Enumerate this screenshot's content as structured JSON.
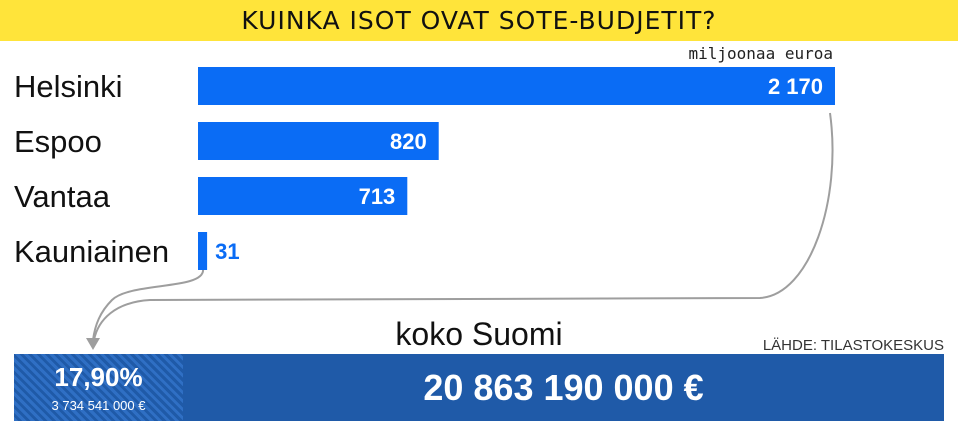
{
  "title": "KUINKA ISOT OVAT SOTE-BUDJETIT?",
  "unit": "miljoonaa euroa",
  "source": "LÄHDE: TILASTOKESKUS",
  "colors": {
    "title_background": "#ffe43a",
    "bar": "#0a6cf5",
    "total_background": "#1f5aa8",
    "connector": "#9e9e9e"
  },
  "total": {
    "caption": "koko Suomi",
    "amount": "20 863 190 000 €",
    "share_percent": "17,90%",
    "share_amount": "3 734 541 000 €"
  },
  "chart_data": {
    "type": "bar",
    "orientation": "horizontal",
    "categories": [
      "Helsinki",
      "Espoo",
      "Vantaa",
      "Kauniainen"
    ],
    "values": [
      2170,
      820,
      713,
      31
    ],
    "value_labels": [
      "2 170",
      "820",
      "713",
      "31"
    ],
    "xlim": [
      0,
      2170
    ],
    "grid": false,
    "legend": "none"
  }
}
